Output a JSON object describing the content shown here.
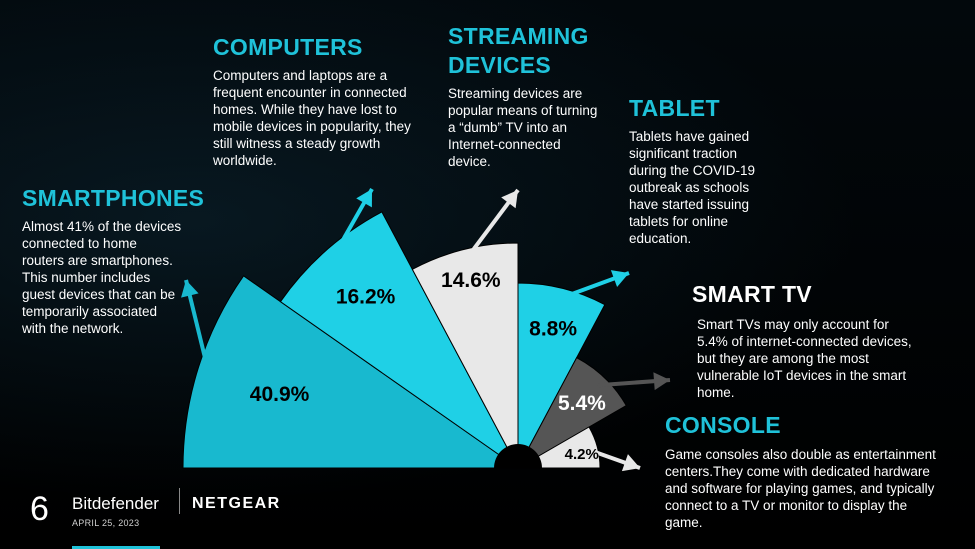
{
  "chart_data": {
    "type": "pie",
    "subtype": "radial-fan",
    "slices": [
      {
        "name": "SMARTPHONES",
        "value": 40.9,
        "label": "40.9%",
        "color": "#18b9cf"
      },
      {
        "name": "COMPUTERS",
        "value": 16.2,
        "label": "16.2%",
        "color": "#1fd0e6"
      },
      {
        "name": "STREAMING DEVICES",
        "value": 14.6,
        "label": "14.6%",
        "color": "#e8e8e8"
      },
      {
        "name": "TABLET",
        "value": 8.8,
        "label": "8.8%",
        "color": "#1fd0e6"
      },
      {
        "name": "SMART TV",
        "value": 5.4,
        "label": "5.4%",
        "color": "#555555"
      },
      {
        "name": "CONSOLE",
        "value": 4.2,
        "label": "4.2%",
        "color": "#e8e8e8"
      }
    ]
  },
  "callouts": {
    "smartphones": {
      "title": "SMARTPHONES",
      "text": "Almost 41% of the devices connected to home routers are smartphones. This number includes guest devices that can be temporarily associated with the network."
    },
    "computers": {
      "title": "COMPUTERS",
      "text": "Computers and laptops are a frequent encounter in connected homes. While they have lost to mobile devices in popularity, they still witness a steady growth worldwide."
    },
    "streaming": {
      "title": "STREAMING DEVICES",
      "text": "Streaming devices are popular means of turning a “dumb” TV into an Internet-connected device."
    },
    "tablet": {
      "title": "TABLET",
      "text": "Tablets have gained significant traction during the COVID-19 outbreak as schools have started issuing tablets for online education."
    },
    "smarttv": {
      "title": "SMART TV",
      "text": "Smart TVs may only account for 5.4% of internet-connected devices, but they are among the most vulnerable IoT devices in the smart home."
    },
    "console": {
      "title": "CONSOLE",
      "text": "Game consoles also double as entertainment centers.They come with dedicated hardware and software for playing games, and typically connect to a TV or monitor to display the game."
    }
  },
  "footer": {
    "page_number": "6",
    "brand1": "Bitdefender",
    "brand2": "NETGEAR",
    "date": "APRIL 25, 2023"
  },
  "colors": {
    "accent": "#1fc2d9",
    "background": "#000000"
  }
}
